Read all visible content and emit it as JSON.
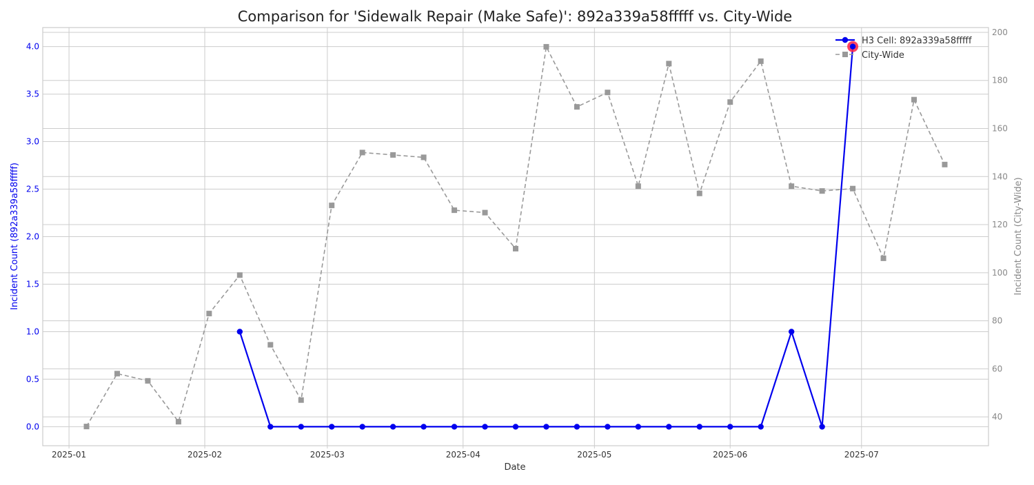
{
  "chart_data": {
    "type": "line",
    "title": "Comparison for 'Sidewalk Repair (Make Safe)': 892a339a58fffff vs. City-Wide",
    "xlabel": "Date",
    "ylabel_left": "Incident Count (892a339a58fffff)",
    "ylabel_right": "Incident Count (City-Wide)",
    "x_ticks": [
      "2025-01",
      "2025-02",
      "2025-03",
      "2025-04",
      "2025-05",
      "2025-06",
      "2025-07"
    ],
    "xlim": [
      "2024-12-26",
      "2025-07-30"
    ],
    "y_left_ticks": [
      "0.0",
      "0.5",
      "1.0",
      "1.5",
      "2.0",
      "2.5",
      "3.0",
      "3.5",
      "4.0"
    ],
    "y_left_lim": [
      -0.2,
      4.2
    ],
    "y_right_ticks": [
      "40",
      "60",
      "80",
      "100",
      "120",
      "140",
      "160",
      "180",
      "200"
    ],
    "y_right_lim": [
      28,
      202
    ],
    "grid": true,
    "legend_position": "top-right",
    "series": [
      {
        "name": "H3 Cell: 892a339a58fffff",
        "axis": "left",
        "color": "#0000ee",
        "line_style": "solid",
        "marker": "circle",
        "x": [
          "2025-02-09",
          "2025-02-16",
          "2025-02-23",
          "2025-03-02",
          "2025-03-09",
          "2025-03-16",
          "2025-03-23",
          "2025-03-30",
          "2025-04-06",
          "2025-04-13",
          "2025-04-20",
          "2025-04-27",
          "2025-05-04",
          "2025-05-11",
          "2025-05-18",
          "2025-05-25",
          "2025-06-01",
          "2025-06-08",
          "2025-06-15",
          "2025-06-22",
          "2025-06-29"
        ],
        "values": [
          1,
          0,
          0,
          0,
          0,
          0,
          0,
          0,
          0,
          0,
          0,
          0,
          0,
          0,
          0,
          0,
          0,
          0,
          1,
          0,
          4
        ],
        "highlight": {
          "x": "2025-06-29",
          "value": 4,
          "color": "#ff2244"
        }
      },
      {
        "name": "City-Wide",
        "axis": "right",
        "color": "#999999",
        "line_style": "dashed",
        "marker": "square",
        "x": [
          "2025-01-05",
          "2025-01-12",
          "2025-01-19",
          "2025-01-26",
          "2025-02-02",
          "2025-02-09",
          "2025-02-16",
          "2025-02-23",
          "2025-03-02",
          "2025-03-09",
          "2025-03-16",
          "2025-03-23",
          "2025-03-30",
          "2025-04-06",
          "2025-04-13",
          "2025-04-20",
          "2025-04-27",
          "2025-05-04",
          "2025-05-11",
          "2025-05-18",
          "2025-05-25",
          "2025-06-01",
          "2025-06-08",
          "2025-06-15",
          "2025-06-22",
          "2025-06-29",
          "2025-07-06",
          "2025-07-13",
          "2025-07-20"
        ],
        "values": [
          36,
          58,
          55,
          38,
          83,
          99,
          70,
          47,
          128,
          150,
          149,
          148,
          126,
          125,
          110,
          194,
          169,
          175,
          136,
          187,
          133,
          171,
          188,
          136,
          134,
          135,
          106,
          172,
          145
        ]
      }
    ]
  }
}
